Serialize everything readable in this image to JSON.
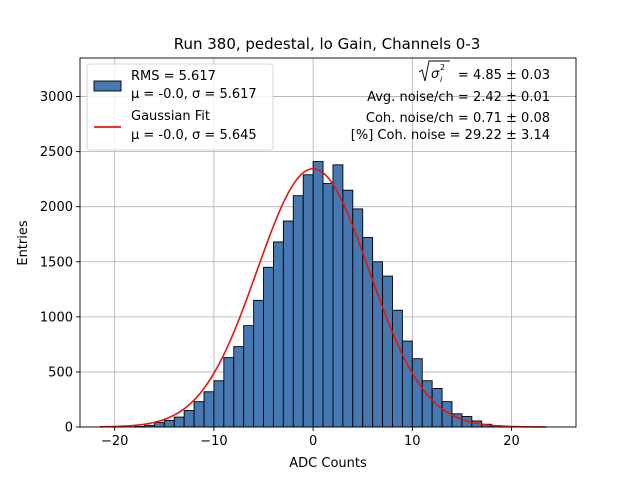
{
  "chart_data": {
    "type": "bar",
    "title": "Run 380, pedestal, lo Gain, Channels 0-3",
    "xlabel": "ADC Counts",
    "ylabel": "Entries",
    "xlim": [
      -23.5,
      26.5
    ],
    "ylim": [
      0,
      3350
    ],
    "xticks": [
      -20,
      -10,
      0,
      10,
      20
    ],
    "xtick_labels": [
      "−20",
      "−10",
      "0",
      "10",
      "20"
    ],
    "yticks": [
      0,
      500,
      1000,
      1500,
      2000,
      2500,
      3000
    ],
    "grid": true,
    "bin_width": 1,
    "bins": {
      "x_left": [
        -18,
        -17,
        -16,
        -15,
        -14,
        -13,
        -12,
        -11,
        -10,
        -9,
        -8,
        -7,
        -6,
        -5,
        -4,
        -3,
        -2,
        -1,
        0,
        1,
        2,
        3,
        4,
        5,
        6,
        7,
        8,
        9,
        10,
        11,
        12,
        13,
        14,
        15,
        16,
        17,
        18,
        19
      ],
      "counts": [
        5,
        15,
        40,
        60,
        90,
        150,
        230,
        320,
        420,
        630,
        730,
        920,
        1150,
        1450,
        1680,
        1870,
        2100,
        2290,
        2410,
        2210,
        2380,
        2150,
        1980,
        1720,
        1500,
        1370,
        1060,
        780,
        620,
        420,
        350,
        230,
        120,
        95,
        55,
        25,
        12,
        5
      ]
    },
    "series": [
      {
        "name": "RMS = 5.617",
        "name_line2": "μ = -0.0, σ = 5.617",
        "kind": "histogram",
        "color": "#4679b1",
        "edge": "#000000"
      },
      {
        "name": "Gaussian Fit",
        "name_line2": "μ = -0.0, σ = 5.645",
        "kind": "fit",
        "color": "#e8140e",
        "mu": 0.0,
        "sigma": 5.645,
        "amplitude": 2345,
        "x_range": [
          -21.5,
          23.5
        ]
      }
    ],
    "legend_position": "upper-left",
    "annotations": [
      {
        "formula_value": " = 4.85 ± 0.03"
      },
      {
        "text": "Avg. noise/ch = 2.42 ± 0.01"
      },
      {
        "text": "Coh. noise/ch = 0.71 ± 0.08"
      },
      {
        "text": "[%] Coh. noise = 29.22 ± 3.14"
      }
    ]
  }
}
